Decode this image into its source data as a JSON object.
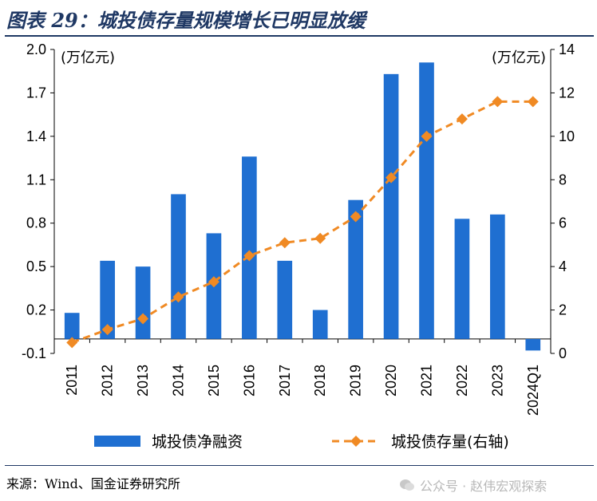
{
  "title": "图表 29：城投债存量规模增长已明显放缓",
  "source": "来源：Wind、国金证券研究所",
  "watermark": "公众号 · 赵伟宏观探索",
  "colors": {
    "bar": "#1f6fd1",
    "line": "#f08a24",
    "rule": "#1f3864"
  },
  "chart_data": {
    "type": "bar+line",
    "categories": [
      "2011",
      "2012",
      "2013",
      "2014",
      "2015",
      "2016",
      "2017",
      "2018",
      "2019",
      "2020",
      "2021",
      "2022",
      "2023",
      "2024Q1"
    ],
    "series": [
      {
        "name": "城投债净融资",
        "type": "bar",
        "axis": "left",
        "values": [
          0.18,
          0.54,
          0.5,
          1.0,
          0.73,
          1.26,
          0.54,
          0.2,
          0.96,
          1.83,
          1.91,
          0.83,
          0.86,
          -0.08
        ]
      },
      {
        "name": "城投债存量(右轴)",
        "type": "line",
        "axis": "right",
        "style": "dashed",
        "marker": "diamond",
        "values": [
          0.5,
          1.1,
          1.6,
          2.6,
          3.3,
          4.5,
          5.1,
          5.3,
          6.3,
          8.1,
          10.0,
          10.8,
          11.6,
          11.6
        ]
      }
    ],
    "y_left": {
      "unit": "(万亿元)",
      "ylim": [
        -0.1,
        2.0
      ],
      "ticks": [
        "-0.1",
        "0.2",
        "0.5",
        "0.8",
        "1.1",
        "1.4",
        "1.7",
        "2.0"
      ]
    },
    "y_right": {
      "unit": "(万亿元)",
      "ylim": [
        0,
        14
      ],
      "ticks": [
        "0",
        "2",
        "4",
        "6",
        "8",
        "10",
        "12",
        "14"
      ]
    },
    "grid": false,
    "legend_position": "bottom"
  }
}
